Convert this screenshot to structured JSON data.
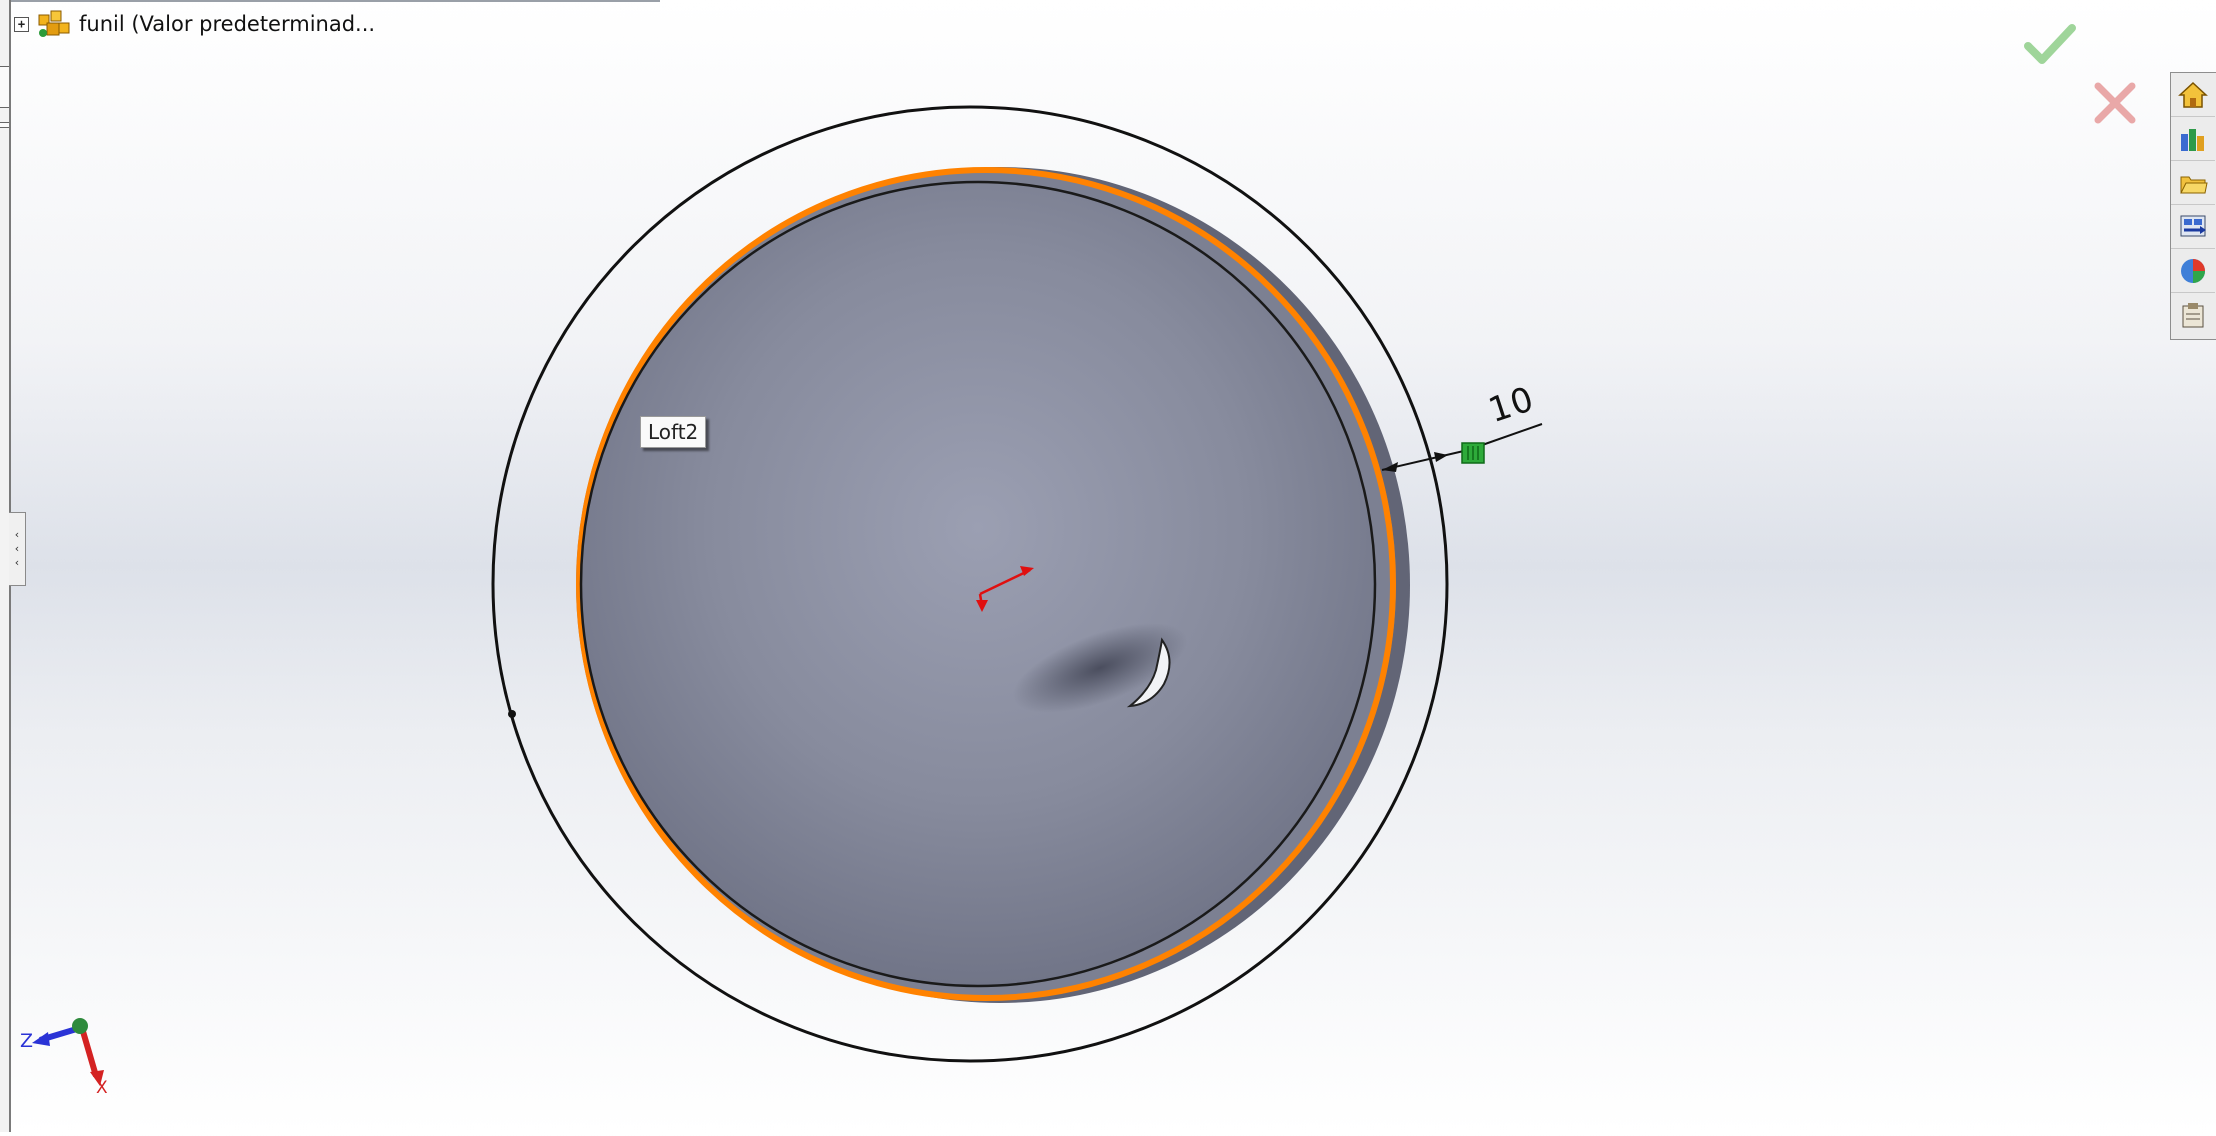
{
  "app": {
    "name": "SolidWorks"
  },
  "feature_tree": {
    "root_label": "funil  (Valor predeterminad...",
    "expander": "+"
  },
  "property_manager": {
    "ok": "check-icon",
    "cancel": "close-icon"
  },
  "task_pane": {
    "buttons": [
      "home-icon",
      "resources-icon",
      "open-folder-icon",
      "design-library-icon",
      "appearances-icon",
      "custom-properties-icon"
    ]
  },
  "graphics": {
    "tooltip": "Loft2",
    "dimension_value": "10",
    "selection_color": "#ff8200"
  },
  "triad": {
    "z": "Z",
    "x": "X"
  }
}
